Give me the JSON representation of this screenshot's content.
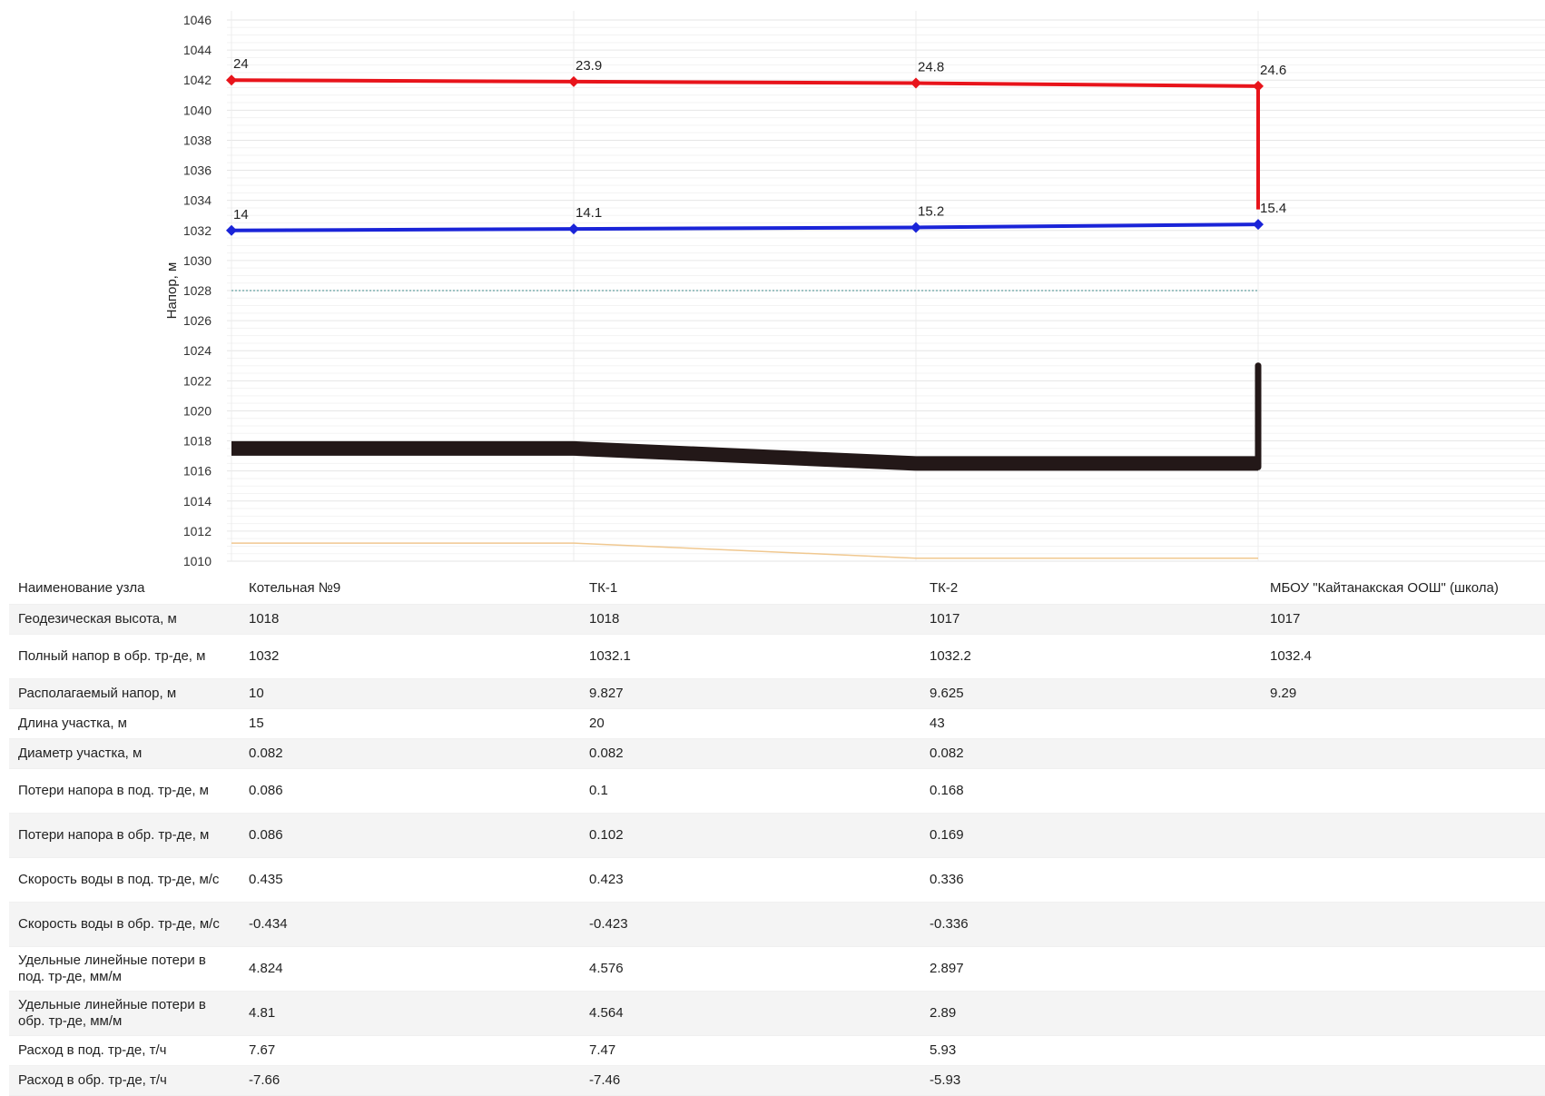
{
  "chart_data": {
    "type": "line",
    "ylabel": "Напор, м",
    "ylim": [
      1010,
      1046
    ],
    "y_ticks": [
      1010,
      1012,
      1014,
      1016,
      1018,
      1020,
      1022,
      1024,
      1026,
      1028,
      1030,
      1032,
      1034,
      1036,
      1038,
      1040,
      1042,
      1044,
      1046
    ],
    "x": [
      "Котельная №9",
      "ТК-1",
      "ТК-2",
      "МБОУ \"Кайтанакская ООШ\" (школа)"
    ],
    "grid": true,
    "series": [
      {
        "key": "supply",
        "color": "#e8141b",
        "values": [
          1042,
          1041.9,
          1041.8,
          1041.6
        ],
        "labels": [
          "24",
          "23.9",
          "24.8",
          "24.6"
        ]
      },
      {
        "key": "return",
        "color": "#1a24d8",
        "values": [
          1032,
          1032.1,
          1032.2,
          1032.4
        ],
        "labels": [
          "14",
          "14.1",
          "15.2",
          "15.4"
        ]
      },
      {
        "key": "dotted",
        "color": "#7fb0b0",
        "values": [
          1028,
          1028,
          1028,
          1028
        ]
      },
      {
        "key": "ground",
        "color": "#231818",
        "values": [
          1017.5,
          1017.5,
          1016.5,
          1016.5
        ]
      },
      {
        "key": "bottom",
        "color": "#f0c890",
        "values": [
          1011.2,
          1011.2,
          1010.2,
          1010.2
        ]
      }
    ],
    "end_riser": {
      "ground_top": 1023,
      "supply_from": 1041.6,
      "supply_to": 1033.4
    }
  },
  "table": {
    "rows": [
      {
        "label": "Наименование узла",
        "values": [
          "Котельная №9",
          "ТК-1",
          "ТК-2",
          "МБОУ \"Кайтанакская ООШ\" (школа)"
        ]
      },
      {
        "label": "Геодезическая высота, м",
        "values": [
          "1018",
          "1018",
          "1017",
          "1017"
        ]
      },
      {
        "label": "Полный напор в обр. тр-де, м",
        "values": [
          "1032",
          "1032.1",
          "1032.2",
          "1032.4"
        ]
      },
      {
        "label": "Располагаемый напор, м",
        "values": [
          "10",
          "9.827",
          "9.625",
          "9.29"
        ]
      },
      {
        "label": "Длина участка, м",
        "values": [
          "15",
          "20",
          "43",
          ""
        ]
      },
      {
        "label": "Диаметр участка, м",
        "values": [
          "0.082",
          "0.082",
          "0.082",
          ""
        ]
      },
      {
        "label": "Потери напора в под. тр-де, м",
        "values": [
          "0.086",
          "0.1",
          "0.168",
          ""
        ]
      },
      {
        "label": "Потери напора в обр. тр-де, м",
        "values": [
          "0.086",
          "0.102",
          "0.169",
          ""
        ]
      },
      {
        "label": "Скорость воды в под. тр-де, м/с",
        "values": [
          "0.435",
          "0.423",
          "0.336",
          ""
        ]
      },
      {
        "label": "Скорость воды в обр. тр-де, м/с",
        "values": [
          "-0.434",
          "-0.423",
          "-0.336",
          ""
        ]
      },
      {
        "label": "Удельные линейные потери в под. тр-де, мм/м",
        "values": [
          "4.824",
          "4.576",
          "2.897",
          ""
        ]
      },
      {
        "label": "Удельные линейные потери в обр. тр-де, мм/м",
        "values": [
          "4.81",
          "4.564",
          "2.89",
          ""
        ]
      },
      {
        "label": "Расход в под. тр-де, т/ч",
        "values": [
          "7.67",
          "7.47",
          "5.93",
          ""
        ]
      },
      {
        "label": "Расход в обр. тр-де, т/ч",
        "values": [
          "-7.66",
          "-7.46",
          "-5.93",
          ""
        ]
      }
    ]
  }
}
